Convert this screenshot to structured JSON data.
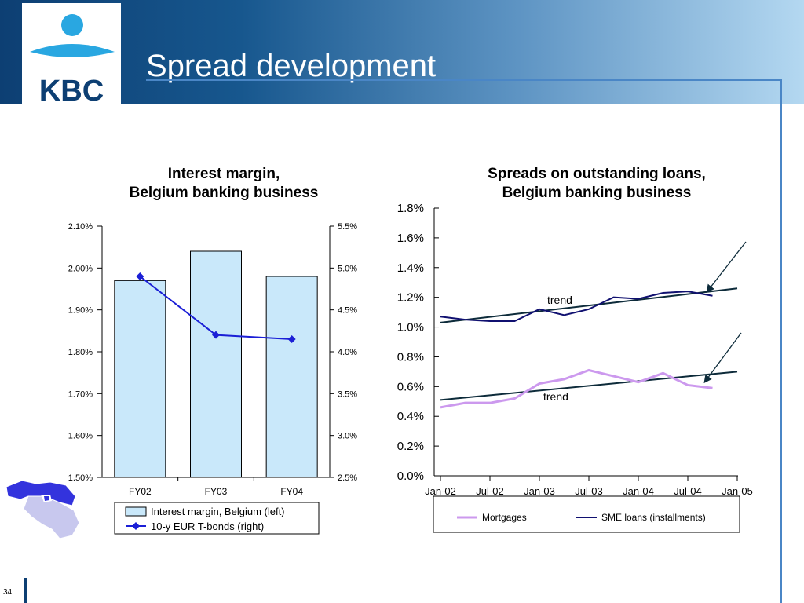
{
  "slide": {
    "title": "Spread development",
    "page_number": "34",
    "logo_text": "KBC"
  },
  "colors": {
    "header_dark": "#0d3f73",
    "header_light": "#b4d8f1",
    "bar_fill": "#c9e8fa",
    "bond_line": "#1b1fd6",
    "mortgages_line": "#cc99ee",
    "sme_line": "#101070",
    "trend_line": "#0d2b3a",
    "map_blue": "#3333dd",
    "map_light": "#c8c8ee"
  },
  "chart_data": [
    {
      "type": "bar",
      "title": "Interest margin,\nBelgium banking business",
      "title_lines": [
        "Interest margin,",
        "Belgium banking business"
      ],
      "categories": [
        "FY02",
        "FY03",
        "FY04"
      ],
      "y_left_ticks": [
        "2.10%",
        "2.00%",
        "1.90%",
        "1.80%",
        "1.70%",
        "1.60%",
        "1.50%"
      ],
      "y_right_ticks": [
        "5.5%",
        "5.0%",
        "4.5%",
        "4.0%",
        "3.5%",
        "3.0%",
        "2.5%"
      ],
      "ylim_left": [
        1.5,
        2.1
      ],
      "ylim_right": [
        2.5,
        5.5
      ],
      "series": [
        {
          "name": "Interest margin, Belgium (left)",
          "kind": "bar",
          "axis": "left",
          "values": [
            1.97,
            2.04,
            1.98
          ]
        },
        {
          "name": "10-y EUR T-bonds (right)",
          "kind": "line",
          "axis": "right",
          "values": [
            4.9,
            4.2,
            4.15
          ]
        }
      ],
      "legend_placement": "bottom"
    },
    {
      "type": "line",
      "title": "Spreads on outstanding loans,\nBelgium banking business",
      "title_lines": [
        "Spreads on outstanding loans,",
        "Belgium banking business"
      ],
      "x_ticks": [
        "Jan-02",
        "Jul-02",
        "Jan-03",
        "Jul-03",
        "Jan-04",
        "Jul-04",
        "Jan-05"
      ],
      "y_ticks": [
        "1.8%",
        "1.6%",
        "1.4%",
        "1.2%",
        "1.0%",
        "0.8%",
        "0.6%",
        "0.4%",
        "0.2%",
        "0.0%"
      ],
      "ylim": [
        0,
        1.8
      ],
      "x_dates": [
        "Jan-02",
        "Apr-02",
        "Jul-02",
        "Oct-02",
        "Jan-03",
        "Apr-03",
        "Jul-03",
        "Oct-03",
        "Jan-04",
        "Apr-04",
        "Jul-04",
        "Oct-04"
      ],
      "series": [
        {
          "name": "Mortgages",
          "values": [
            0.46,
            0.49,
            0.49,
            0.52,
            0.62,
            0.65,
            0.71,
            0.67,
            0.63,
            0.69,
            0.61,
            0.59
          ]
        },
        {
          "name": "SME loans (installments)",
          "values": [
            1.07,
            1.05,
            1.04,
            1.04,
            1.12,
            1.08,
            1.12,
            1.2,
            1.19,
            1.23,
            1.24,
            1.21
          ]
        }
      ],
      "trends": [
        {
          "label": "trend",
          "for": "SME loans (installments)",
          "start": {
            "x": "Jan-02",
            "y": 1.03
          },
          "end": {
            "x": "Jan-05",
            "y": 1.26
          }
        },
        {
          "label": "trend",
          "for": "Mortgages",
          "start": {
            "x": "Jan-02",
            "y": 0.51
          },
          "end": {
            "x": "Jan-05",
            "y": 0.7
          }
        }
      ],
      "legend_placement": "bottom"
    }
  ]
}
